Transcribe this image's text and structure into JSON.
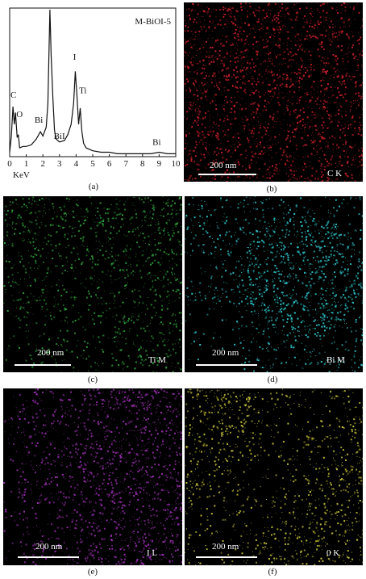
{
  "panels": {
    "a": {
      "caption": "(a)",
      "title": "M-BiOI-5",
      "xlabel": "KeV",
      "peaks": {
        "C": "C",
        "O": "O",
        "Bi_low": "Bi",
        "BiI": "BiI",
        "I": "I",
        "Ti": "Ti",
        "Bi_high": "Bi"
      }
    },
    "b": {
      "caption": "(b)",
      "scale_bar": "200 nm",
      "element": "C K",
      "color": "#c8202a"
    },
    "c": {
      "caption": "(c)",
      "scale_bar": "200 nm",
      "element": "Ti M",
      "color": "#2fa03a"
    },
    "d": {
      "caption": "(d)",
      "scale_bar": "200 nm",
      "element": "Bi M",
      "color": "#2ec3c8"
    },
    "e": {
      "caption": "(e)",
      "scale_bar": "200 nm",
      "element": "I L",
      "color": "#9a2fb0"
    },
    "f": {
      "caption": "(f)",
      "scale_bar": "200 nm",
      "element": "0 K",
      "color": "#c7c23a"
    }
  },
  "chart_data": {
    "type": "line",
    "title": "M-BiOI-5",
    "xlabel": "KeV",
    "ylabel": "",
    "xlim": [
      0,
      10
    ],
    "xticks": [
      0,
      1,
      2,
      3,
      4,
      5,
      6,
      7,
      8,
      9,
      10
    ],
    "series": [
      {
        "x": [
          0.0,
          0.1,
          0.2,
          0.28,
          0.35,
          0.45,
          0.52,
          0.6,
          0.8,
          1.0,
          1.3,
          1.6,
          1.85,
          2.0,
          2.2,
          2.3,
          2.42,
          2.5,
          2.6,
          2.7,
          2.8,
          3.0,
          3.3,
          3.5,
          3.7,
          3.85,
          3.95,
          4.05,
          4.15,
          4.25,
          4.35,
          4.45,
          4.6,
          4.8,
          5.0,
          5.5,
          6.0,
          6.5,
          7.0,
          7.5,
          8.0,
          8.5,
          9.0,
          9.5,
          10.0
        ],
        "y": [
          3,
          14,
          34,
          22,
          30,
          13,
          15,
          6,
          7,
          7,
          8,
          12,
          17,
          14,
          20,
          36,
          100,
          68,
          40,
          18,
          12,
          10,
          11,
          15,
          22,
          36,
          58,
          42,
          22,
          33,
          17,
          9,
          6,
          5,
          4,
          3,
          3,
          2,
          2,
          2,
          2,
          2,
          3,
          2,
          2
        ]
      }
    ]
  }
}
